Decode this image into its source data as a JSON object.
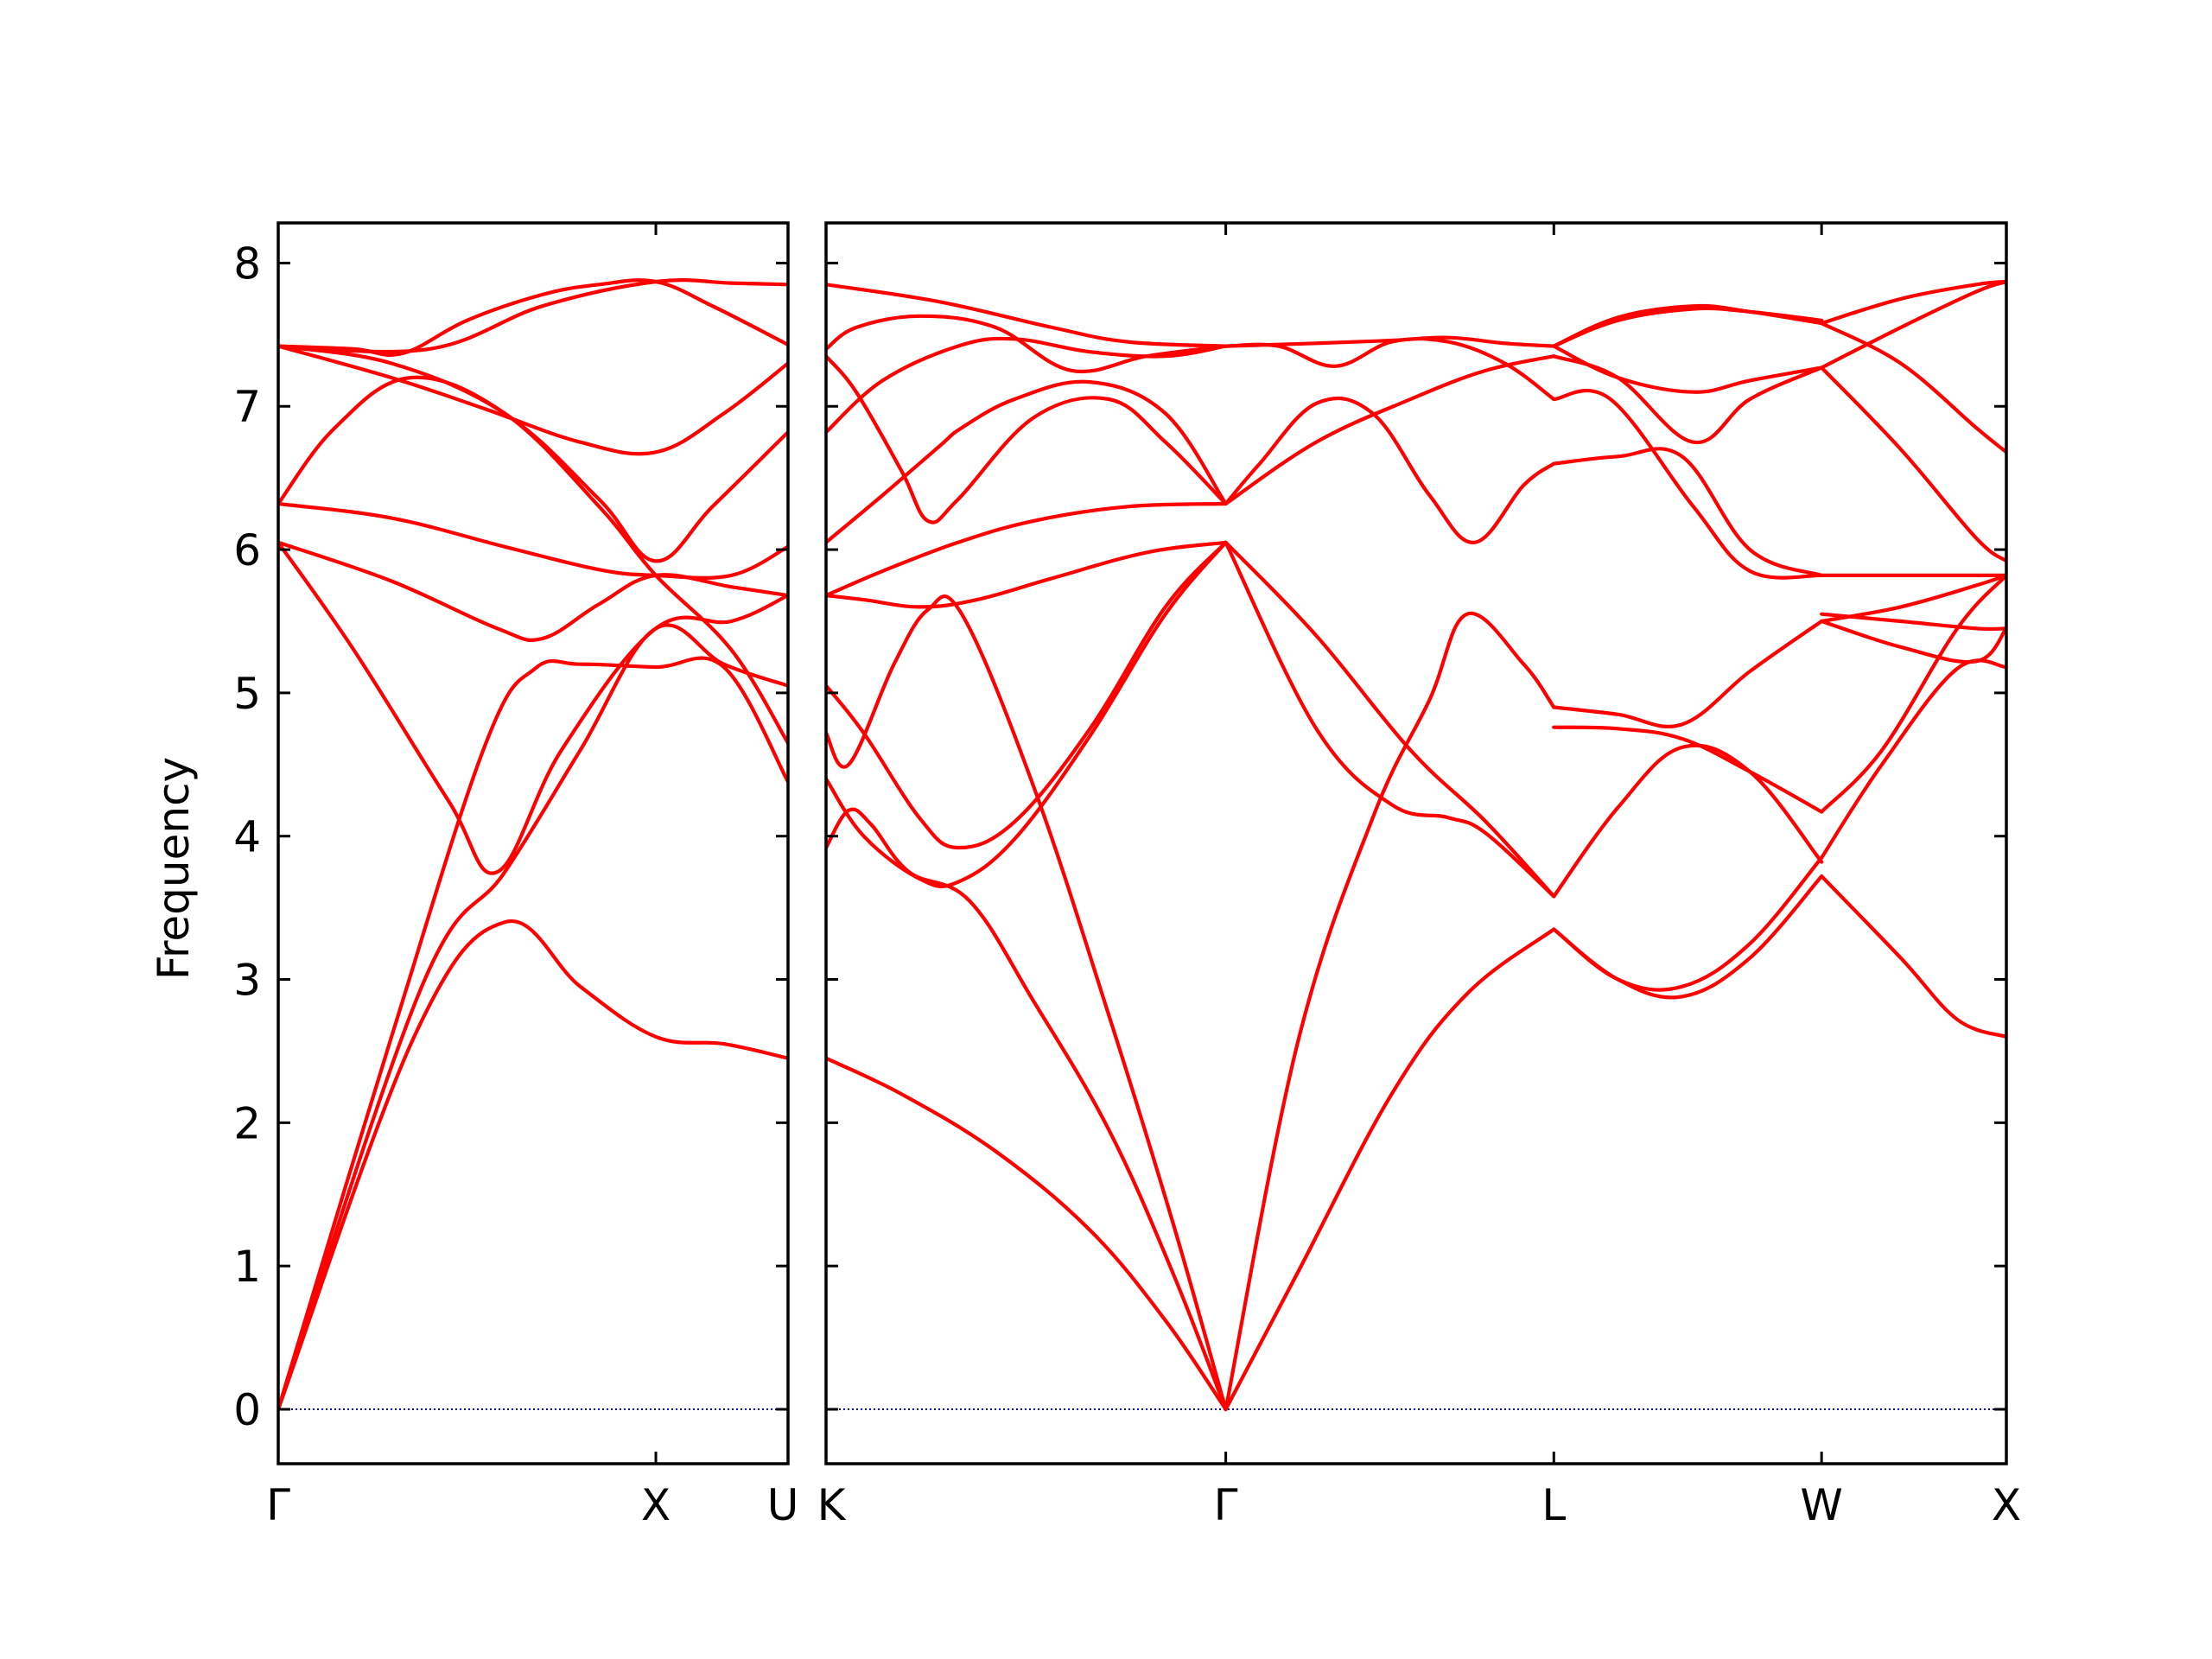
{
  "chart_data": {
    "type": "line",
    "ylabel": "Frequency",
    "ylim": [
      -0.38,
      8.28
    ],
    "yticks": [
      0,
      1,
      2,
      3,
      4,
      5,
      6,
      7,
      8
    ],
    "grid": false,
    "legend": "none",
    "colors": {
      "bands": "#ff0000",
      "zero_line": "#0000cc",
      "axes": "#000000"
    },
    "panels": [
      {
        "name": "panel-left",
        "xrange": [
          0,
          1.35
        ],
        "xticks": [
          {
            "x": 0.0,
            "label": "Γ"
          },
          {
            "x": 1.0,
            "label": "X"
          },
          {
            "x": 1.35,
            "label": "U"
          }
        ],
        "bands": [
          {
            "x": [
              0,
              0.36,
              0.6,
              0.8,
              1.0,
              1.18,
              1.35
            ],
            "y": [
              0,
              2.6,
              3.4,
              2.95,
              2.6,
              2.55,
              2.45
            ]
          },
          {
            "x": [
              0,
              0.38,
              0.6,
              0.8,
              1.0,
              1.18,
              1.35
            ],
            "y": [
              0,
              2.95,
              3.75,
              4.6,
              5.45,
              5.2,
              5.05
            ]
          },
          {
            "x": [
              0,
              0.3,
              0.55,
              0.68,
              0.8,
              1.0,
              1.18,
              1.35
            ],
            "y": [
              0,
              2.6,
              4.65,
              5.17,
              5.2,
              5.18,
              5.18,
              4.38
            ]
          },
          {
            "x": [
              0,
              0.2,
              0.45,
              0.58,
              0.75,
              1.0,
              1.2,
              1.35
            ],
            "y": [
              6.05,
              5.3,
              4.25,
              3.75,
              4.6,
              5.45,
              5.5,
              5.68
            ]
          },
          {
            "x": [
              0,
              0.3,
              0.58,
              0.7,
              0.85,
              1.0,
              1.2,
              1.35
            ],
            "y": [
              6.05,
              5.78,
              5.45,
              5.38,
              5.62,
              5.82,
              5.74,
              5.68
            ]
          },
          {
            "x": [
              0,
              0.3,
              0.6,
              0.85,
              1.0,
              1.2,
              1.35
            ],
            "y": [
              6.32,
              6.22,
              6.02,
              5.86,
              5.82,
              5.82,
              6.02
            ]
          },
          {
            "x": [
              0,
              0.15,
              0.35,
              0.6,
              0.85,
              1.0,
              1.2,
              1.35
            ],
            "y": [
              6.32,
              6.85,
              7.2,
              6.95,
              6.3,
              5.82,
              5.3,
              4.65
            ]
          },
          {
            "x": [
              0,
              0.3,
              0.6,
              0.85,
              1.0,
              1.15,
              1.35
            ],
            "y": [
              7.42,
              7.3,
              6.95,
              6.35,
              5.92,
              6.3,
              6.82
            ]
          },
          {
            "x": [
              0,
              0.3,
              0.55,
              0.8,
              1.0,
              1.18,
              1.35
            ],
            "y": [
              7.42,
              7.2,
              6.98,
              6.75,
              6.68,
              6.95,
              7.3
            ]
          },
          {
            "x": [
              0,
              0.2,
              0.33,
              0.5,
              0.7,
              0.85,
              1.0,
              1.15,
              1.35
            ],
            "y": [
              7.42,
              7.4,
              7.37,
              7.6,
              7.78,
              7.85,
              7.87,
              7.7,
              7.43
            ]
          },
          {
            "x": [
              0,
              0.4,
              0.7,
              1.0,
              1.2,
              1.35
            ],
            "y": [
              7.42,
              7.4,
              7.7,
              7.87,
              7.86,
              7.85
            ]
          }
        ]
      },
      {
        "name": "panel-right",
        "xrange": [
          0,
          3.13
        ],
        "xticks": [
          {
            "x": 0.0,
            "label": "K"
          },
          {
            "x": 1.06,
            "label": "Γ"
          },
          {
            "x": 1.93,
            "label": "L"
          },
          {
            "x": 2.64,
            "label": "W"
          },
          {
            "x": 3.13,
            "label": "X"
          }
        ],
        "bands": [
          {
            "x": [
              0,
              0.2,
              0.45,
              0.7,
              0.9,
              1.06
            ],
            "y": [
              2.45,
              2.2,
              1.8,
              1.25,
              0.62,
              0
            ]
          },
          {
            "x": [
              0,
              0.06,
              0.12,
              0.22,
              0.38,
              0.55,
              0.75,
              0.92,
              1.06
            ],
            "y": [
              3.92,
              4.18,
              4.08,
              3.75,
              3.55,
              2.85,
              1.95,
              0.95,
              0
            ]
          },
          {
            "x": [
              0,
              0.06,
              0.18,
              0.27,
              0.36,
              0.55,
              0.75,
              0.92,
              1.06
            ],
            "y": [
              4.72,
              4.5,
              5.2,
              5.58,
              5.55,
              4.35,
              2.75,
              1.3,
              0
            ]
          },
          {
            "x": [
              0,
              0.1,
              0.25,
              0.35,
              0.5,
              0.7,
              0.9,
              1.06
            ],
            "y": [
              5.05,
              4.72,
              4.12,
              3.92,
              4.1,
              4.75,
              5.6,
              6.05
            ]
          },
          {
            "x": [
              0,
              0.1,
              0.25,
              0.35,
              0.5,
              0.7,
              0.9,
              1.06
            ],
            "y": [
              4.4,
              4.0,
              3.7,
              3.68,
              3.98,
              4.7,
              5.55,
              6.05
            ]
          },
          {
            "x": [
              0,
              0.1,
              0.25,
              0.4,
              0.6,
              0.85,
              1.06
            ],
            "y": [
              5.68,
              5.65,
              5.6,
              5.65,
              5.8,
              5.98,
              6.05
            ]
          },
          {
            "x": [
              0,
              0.15,
              0.35,
              0.55,
              0.8,
              1.06
            ],
            "y": [
              5.68,
              5.85,
              6.05,
              6.2,
              6.3,
              6.32
            ]
          },
          {
            "x": [
              0,
              0.15,
              0.3,
              0.36,
              0.5,
              0.7,
              0.9,
              1.06
            ],
            "y": [
              6.05,
              6.38,
              6.72,
              6.85,
              7.05,
              7.17,
              6.95,
              6.32
            ]
          },
          {
            "x": [
              0,
              0.08,
              0.2,
              0.27,
              0.35,
              0.55,
              0.75,
              0.9,
              1.06
            ],
            "y": [
              7.35,
              7.1,
              6.55,
              6.2,
              6.35,
              6.92,
              7.05,
              6.75,
              6.32
            ]
          },
          {
            "x": [
              0,
              0.15,
              0.35,
              0.5,
              0.7,
              0.9,
              1.06
            ],
            "y": [
              6.82,
              7.18,
              7.42,
              7.47,
              7.38,
              7.35,
              7.42
            ]
          },
          {
            "x": [
              0,
              0.08,
              0.25,
              0.45,
              0.65,
              0.85,
              1.06
            ],
            "y": [
              7.4,
              7.55,
              7.63,
              7.55,
              7.25,
              7.35,
              7.42
            ]
          },
          {
            "x": [
              0,
              0.3,
              0.6,
              0.8,
              1.06
            ],
            "y": [
              7.85,
              7.73,
              7.55,
              7.45,
              7.42
            ]
          },
          {
            "x": [
              1.06,
              1.3,
              1.5,
              1.65,
              1.75,
              1.93
            ],
            "y": [
              6.05,
              4.75,
              4.22,
              4.13,
              4.02,
              3.58
            ]
          },
          {
            "x": [
              1.06,
              1.3,
              1.55,
              1.75,
              1.93
            ],
            "y": [
              6.05,
              5.4,
              4.6,
              4.1,
              3.58
            ]
          },
          {
            "x": [
              1.06,
              1.25,
              1.45,
              1.6,
              1.7,
              1.85,
              1.93
            ],
            "y": [
              0,
              2.55,
              4.13,
              4.95,
              5.55,
              5.2,
              4.9
            ]
          },
          {
            "x": [
              1.06,
              1.25,
              1.5,
              1.7,
              1.93
            ],
            "y": [
              0,
              0.95,
              2.2,
              2.9,
              3.35
            ]
          },
          {
            "x": [
              1.06,
              1.15,
              1.3,
              1.45,
              1.6,
              1.72,
              1.85,
              1.93
            ],
            "y": [
              6.32,
              6.6,
              7.02,
              6.95,
              6.38,
              6.05,
              6.45,
              6.6
            ]
          },
          {
            "x": [
              1.06,
              1.3,
              1.55,
              1.75,
              1.93
            ],
            "y": [
              6.32,
              6.75,
              7.05,
              7.25,
              7.35
            ]
          },
          {
            "x": [
              1.06,
              1.2,
              1.35,
              1.5,
              1.65,
              1.8,
              1.93
            ],
            "y": [
              7.42,
              7.42,
              7.28,
              7.45,
              7.45,
              7.3,
              7.05
            ]
          },
          {
            "x": [
              1.06,
              1.3,
              1.5,
              1.65,
              1.8,
              1.93
            ],
            "y": [
              7.42,
              7.44,
              7.46,
              7.48,
              7.44,
              7.42
            ]
          },
          {
            "x": [
              1.93,
              2.1,
              2.27,
              2.45,
              2.64
            ],
            "y": [
              3.35,
              3.0,
              2.95,
              3.25,
              3.85
            ]
          },
          {
            "x": [
              1.93,
              2.1,
              2.27,
              2.45,
              2.64
            ],
            "y": [
              3.35,
              3.0,
              2.88,
              3.15,
              3.72
            ]
          },
          {
            "x": [
              1.93,
              2.1,
              2.27,
              2.45,
              2.64
            ],
            "y": [
              3.58,
              4.2,
              4.62,
              4.45,
              3.82
            ]
          },
          {
            "x": [
              1.93,
              2.1,
              2.27,
              2.45,
              2.64
            ],
            "y": [
              4.9,
              4.85,
              4.78,
              5.15,
              5.5
            ]
          },
          {
            "x": [
              1.93,
              2.1,
              2.27,
              2.45,
              2.64
            ],
            "y": [
              4.76,
              4.75,
              4.68,
              4.45,
              4.17
            ]
          },
          {
            "x": [
              1.93,
              2.1,
              2.27,
              2.45,
              2.64
            ],
            "y": [
              6.6,
              6.65,
              6.65,
              6.0,
              5.82
            ]
          },
          {
            "x": [
              1.93,
              2.08,
              2.3,
              2.45,
              2.64
            ],
            "y": [
              7.05,
              7.05,
              6.3,
              5.85,
              5.82
            ]
          },
          {
            "x": [
              1.93,
              2.1,
              2.3,
              2.45,
              2.64
            ],
            "y": [
              7.35,
              7.2,
              6.75,
              7.05,
              7.27
            ]
          },
          {
            "x": [
              1.93,
              2.1,
              2.3,
              2.45,
              2.64
            ],
            "y": [
              7.42,
              7.2,
              7.1,
              7.18,
              7.27
            ]
          },
          {
            "x": [
              1.93,
              2.1,
              2.3,
              2.45,
              2.64
            ],
            "y": [
              7.42,
              7.6,
              7.68,
              7.66,
              7.6
            ]
          },
          {
            "x": [
              1.93,
              2.1,
              2.3,
              2.45,
              2.64
            ],
            "y": [
              7.42,
              7.62,
              7.7,
              7.66,
              7.58
            ]
          },
          {
            "x": [
              2.64,
              2.85,
              3.0,
              3.13
            ],
            "y": [
              3.72,
              3.15,
              2.72,
              2.6
            ]
          },
          {
            "x": [
              2.64,
              2.8,
              3.0,
              3.13
            ],
            "y": [
              3.85,
              4.5,
              5.17,
              5.18
            ]
          },
          {
            "x": [
              2.64,
              2.8,
              3.0,
              3.13
            ],
            "y": [
              4.17,
              4.6,
              5.45,
              5.82
            ]
          },
          {
            "x": [
              2.64,
              2.85,
              3.05,
              3.13
            ],
            "y": [
              5.5,
              5.6,
              5.75,
              5.82
            ]
          },
          {
            "x": [
              2.64,
              2.85,
              3.05,
              3.13
            ],
            "y": [
              5.55,
              5.5,
              5.45,
              5.45
            ]
          },
          {
            "x": [
              2.64,
              2.85,
              3.05,
              3.13
            ],
            "y": [
              5.5,
              5.32,
              5.22,
              5.45
            ]
          },
          {
            "x": [
              2.64,
              2.85,
              3.05,
              3.13
            ],
            "y": [
              5.82,
              5.82,
              5.82,
              5.82
            ]
          },
          {
            "x": [
              2.64,
              2.85,
              3.05,
              3.13
            ],
            "y": [
              7.27,
              6.7,
              6.08,
              5.92
            ]
          },
          {
            "x": [
              2.64,
              2.85,
              3.05,
              3.13
            ],
            "y": [
              7.27,
              7.55,
              7.8,
              7.87
            ]
          },
          {
            "x": [
              2.64,
              2.85,
              3.05,
              3.13
            ],
            "y": [
              7.58,
              7.3,
              6.85,
              6.68
            ]
          },
          {
            "x": [
              2.64,
              2.85,
              3.05,
              3.13
            ],
            "y": [
              7.58,
              7.75,
              7.85,
              7.87
            ]
          }
        ]
      }
    ]
  }
}
